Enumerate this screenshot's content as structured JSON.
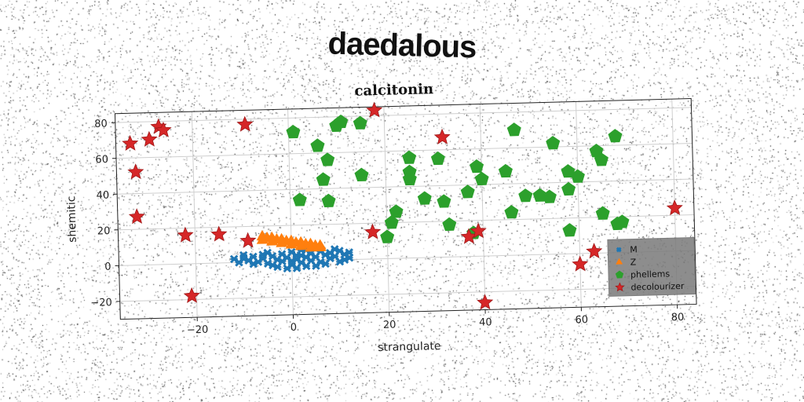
{
  "main_title": "daedalous",
  "chart_data": {
    "type": "scatter",
    "title": "calcitonin",
    "xlabel": "strangulate",
    "ylabel": "shemitic",
    "xlim": [
      -36,
      84
    ],
    "ylim": [
      -30,
      85
    ],
    "xticks": [
      -20,
      0,
      20,
      40,
      60,
      80
    ],
    "yticks": [
      -20,
      0,
      20,
      40,
      60,
      80
    ],
    "grid": true,
    "legend_position": "lower-right",
    "series": [
      {
        "name": "M",
        "marker": "x",
        "color": "#1f77b4",
        "points": [
          [
            -12,
            2
          ],
          [
            -10,
            4
          ],
          [
            -9,
            1
          ],
          [
            -8,
            3
          ],
          [
            -7,
            0
          ],
          [
            -6,
            2
          ],
          [
            -5,
            5
          ],
          [
            -5,
            -1
          ],
          [
            -4,
            3
          ],
          [
            -3,
            1
          ],
          [
            -3,
            -3
          ],
          [
            -2,
            4
          ],
          [
            -2,
            0
          ],
          [
            -1,
            2
          ],
          [
            0,
            -2
          ],
          [
            0,
            5
          ],
          [
            1,
            1
          ],
          [
            1,
            3
          ],
          [
            2,
            -1
          ],
          [
            2,
            6
          ],
          [
            3,
            2
          ],
          [
            3,
            -3
          ],
          [
            4,
            4
          ],
          [
            4,
            0
          ],
          [
            5,
            2
          ],
          [
            6,
            -1
          ],
          [
            6,
            5
          ],
          [
            7,
            3
          ],
          [
            8,
            1
          ],
          [
            8,
            4
          ],
          [
            9,
            2
          ],
          [
            10,
            5
          ],
          [
            10,
            -1
          ],
          [
            11,
            3
          ],
          [
            12,
            1
          ],
          [
            -11,
            0
          ],
          [
            -8,
            -1
          ],
          [
            -6,
            4
          ],
          [
            -4,
            -2
          ],
          [
            -1,
            -4
          ],
          [
            1,
            -4
          ],
          [
            3,
            6
          ],
          [
            5,
            -3
          ],
          [
            7,
            -2
          ],
          [
            9,
            6
          ],
          [
            11,
            0
          ],
          [
            12,
            4
          ],
          [
            -10,
            2
          ],
          [
            0,
            0
          ],
          [
            2,
            3
          ]
        ]
      },
      {
        "name": "Z",
        "marker": "triangle",
        "color": "#ff7f0e",
        "points": [
          [
            -6,
            14
          ],
          [
            -5,
            13
          ],
          [
            -4,
            13
          ],
          [
            -3,
            12
          ],
          [
            -2,
            12
          ],
          [
            -1,
            11
          ],
          [
            0,
            11
          ],
          [
            1,
            10
          ],
          [
            2,
            10
          ],
          [
            3,
            9
          ],
          [
            4,
            9
          ],
          [
            5,
            8
          ],
          [
            6,
            8
          ],
          [
            -6,
            12
          ],
          [
            -4,
            11
          ],
          [
            -2,
            10
          ],
          [
            0,
            9
          ],
          [
            2,
            8
          ],
          [
            4,
            7
          ],
          [
            6,
            7
          ]
        ]
      },
      {
        "name": "phellems",
        "marker": "pentagon",
        "color": "#2ca02c",
        "points": [
          [
            1,
            72
          ],
          [
            6,
            64
          ],
          [
            8,
            56
          ],
          [
            7,
            45
          ],
          [
            2,
            34
          ],
          [
            8,
            33
          ],
          [
            10,
            75
          ],
          [
            11,
            77
          ],
          [
            15,
            76
          ],
          [
            15,
            47
          ],
          [
            20,
            12
          ],
          [
            21,
            20
          ],
          [
            22,
            26
          ],
          [
            25,
            44
          ],
          [
            25,
            48
          ],
          [
            25,
            56
          ],
          [
            28,
            33
          ],
          [
            31,
            55
          ],
          [
            32,
            31
          ],
          [
            33,
            18
          ],
          [
            37,
            36
          ],
          [
            38,
            13
          ],
          [
            39,
            50
          ],
          [
            40,
            43
          ],
          [
            45,
            47
          ],
          [
            46,
            24
          ],
          [
            47,
            70
          ],
          [
            49,
            33
          ],
          [
            52,
            33
          ],
          [
            54,
            32
          ],
          [
            55,
            62
          ],
          [
            58,
            46
          ],
          [
            58,
            36
          ],
          [
            58,
            13
          ],
          [
            60,
            43
          ],
          [
            64,
            57
          ],
          [
            65,
            52
          ],
          [
            65,
            22
          ],
          [
            68,
            16
          ],
          [
            69,
            17
          ],
          [
            68,
            65
          ]
        ]
      },
      {
        "name": "decolourizer",
        "marker": "star",
        "color": "#d62728",
        "points": [
          [
            -33,
            68
          ],
          [
            -29,
            70
          ],
          [
            -27,
            77
          ],
          [
            -26,
            75
          ],
          [
            -32,
            52
          ],
          [
            -32,
            27
          ],
          [
            -22,
            16
          ],
          [
            -21,
            -18
          ],
          [
            -15,
            16
          ],
          [
            -9,
            77
          ],
          [
            -9,
            12
          ],
          [
            18,
            83
          ],
          [
            17,
            15
          ],
          [
            32,
            67
          ],
          [
            37,
            11
          ],
          [
            39,
            14
          ],
          [
            40,
            -26
          ],
          [
            60,
            -6
          ],
          [
            63,
            1
          ],
          [
            80,
            24
          ]
        ]
      }
    ]
  }
}
